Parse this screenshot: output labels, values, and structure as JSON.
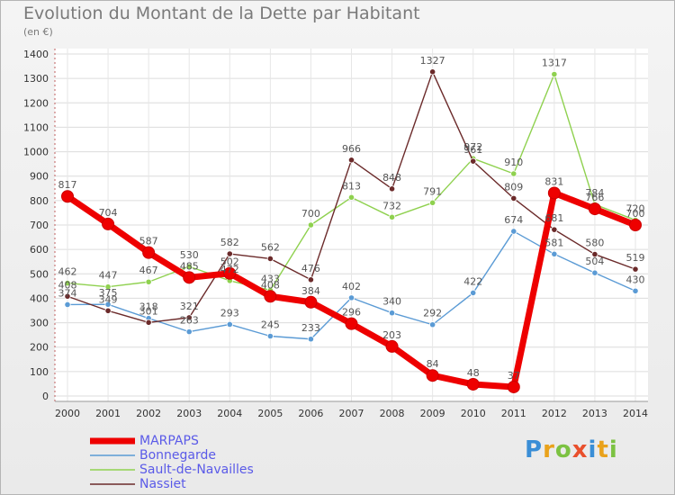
{
  "title": "Evolution du Montant de la Dette par Habitant",
  "unit": "(en €)",
  "logo": "Proxiti",
  "chart_data": {
    "type": "line",
    "x": [
      "2000",
      "2001",
      "2002",
      "2003",
      "2004",
      "2005",
      "2006",
      "2007",
      "2008",
      "2009",
      "2010",
      "2011",
      "2012",
      "2013",
      "2014"
    ],
    "ylim": [
      0,
      1400
    ],
    "yticks": [
      0,
      100,
      200,
      300,
      400,
      500,
      600,
      700,
      800,
      900,
      1000,
      1100,
      1200,
      1300,
      1400
    ],
    "grid": true,
    "legend_position": "bottom-left",
    "series": [
      {
        "name": "MARPAPS",
        "color": "#ee0000",
        "values": [
          817,
          704,
          587,
          485,
          502,
          408,
          384,
          296,
          203,
          84,
          48,
          37,
          831,
          766,
          700
        ]
      },
      {
        "name": "Bonnegarde",
        "color": "#5b9bd5",
        "values": [
          374,
          375,
          318,
          263,
          293,
          245,
          233,
          402,
          340,
          292,
          422,
          674,
          581,
          504,
          430
        ]
      },
      {
        "name": "Sault-de-Navailles",
        "color": "#8fd14f",
        "values": [
          462,
          447,
          467,
          530,
          472,
          433,
          700,
          813,
          732,
          791,
          972,
          910,
          1317,
          784,
          720
        ]
      },
      {
        "name": "Nassiet",
        "color": "#6b2a2a",
        "values": [
          408,
          349,
          301,
          321,
          582,
          562,
          476,
          966,
          848,
          1327,
          961,
          809,
          681,
          580,
          519
        ]
      }
    ]
  }
}
